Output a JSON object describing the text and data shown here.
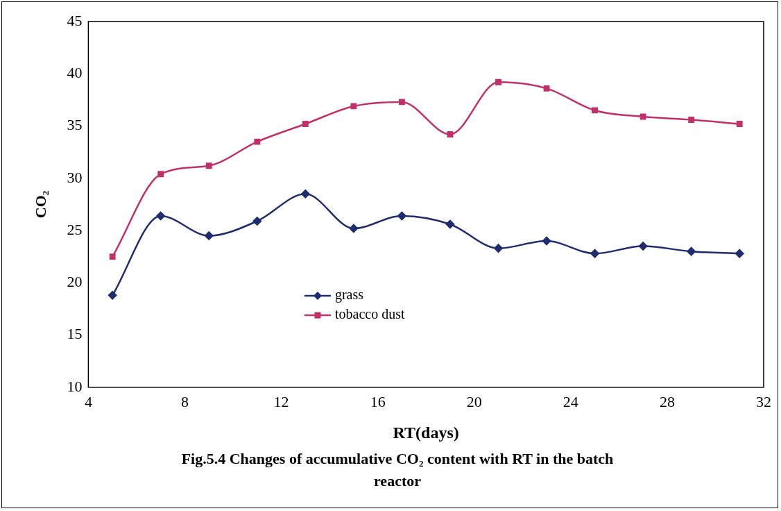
{
  "chart_data": {
    "type": "line",
    "xlabel": "RT(days)",
    "ylabel": "CO₂",
    "x": [
      5,
      7,
      9,
      11,
      13,
      15,
      17,
      19,
      21,
      23,
      25,
      27,
      29,
      31
    ],
    "series": [
      {
        "name": "grass",
        "color": "#1f2d6e",
        "marker": "diamond",
        "values": [
          18.8,
          26.4,
          24.5,
          25.9,
          28.5,
          25.2,
          26.4,
          25.6,
          23.3,
          24.0,
          22.8,
          23.5,
          23.0,
          22.8
        ]
      },
      {
        "name": "tobacco dust",
        "color": "#c2306a",
        "marker": "square",
        "values": [
          22.5,
          30.4,
          31.2,
          33.5,
          35.2,
          36.9,
          37.3,
          34.2,
          39.2,
          38.6,
          36.5,
          35.9,
          35.6,
          35.2
        ]
      }
    ],
    "xlim": [
      4,
      32
    ],
    "xticks": [
      4,
      8,
      12,
      16,
      20,
      24,
      28,
      32
    ],
    "ylim": [
      10,
      45
    ],
    "yticks": [
      10,
      15,
      20,
      25,
      30,
      35,
      40,
      45
    ],
    "grid": false,
    "legend": "center",
    "line_style": "solid",
    "annotations": [
      "Fig.5.4 Changes of accumulative CO₂ content with RT in the batch reactor"
    ]
  }
}
